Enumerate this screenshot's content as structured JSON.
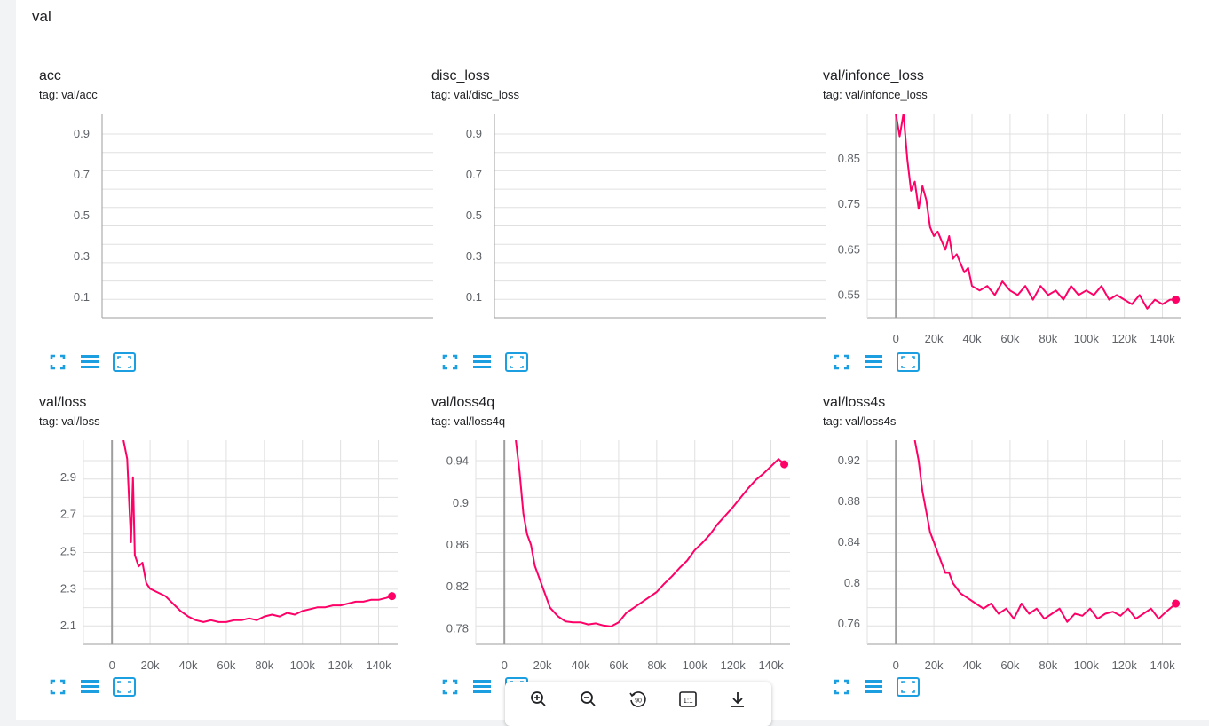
{
  "group": {
    "title": "val"
  },
  "colors": {
    "series": "#ff0066",
    "tool": "#1b9fe0",
    "axis": "#9e9e9e",
    "grid": "#e0e0e0"
  },
  "cards": [
    {
      "title": "acc",
      "tag": "tag: val/acc"
    },
    {
      "title": "disc_loss",
      "tag": "tag: val/disc_loss"
    },
    {
      "title": "val/infonce_loss",
      "tag": "tag: val/infonce_loss"
    },
    {
      "title": "val/loss",
      "tag": "tag: val/loss"
    },
    {
      "title": "val/loss4q",
      "tag": "tag: val/loss4q"
    },
    {
      "title": "val/loss4s",
      "tag": "tag: val/loss4s"
    }
  ],
  "toolbar_icons": [
    "fullscreen-icon",
    "data-table-icon",
    "fit-domain-icon"
  ],
  "zoombar_icons": [
    "zoom-in-icon",
    "zoom-out-icon",
    "rotate-icon",
    "actual-size-icon",
    "download-icon"
  ],
  "chart_data": [
    {
      "type": "line",
      "title": "acc",
      "y_ticks": [
        "0.9",
        "0.7",
        "0.5",
        "0.3",
        "0.1"
      ],
      "x_ticks": [],
      "ylim": [
        0.0,
        1.0
      ],
      "series": []
    },
    {
      "type": "line",
      "title": "disc_loss",
      "y_ticks": [
        "0.9",
        "0.7",
        "0.5",
        "0.3",
        "0.1"
      ],
      "x_ticks": [],
      "ylim": [
        0.0,
        1.0
      ],
      "series": []
    },
    {
      "type": "line",
      "title": "val/infonce_loss",
      "y_ticks": [
        "0.85",
        "0.75",
        "0.65",
        "0.55"
      ],
      "x_ticks": [
        "0",
        "20k",
        "40k",
        "60k",
        "80k",
        "100k",
        "120k",
        "140k"
      ],
      "xlim": [
        -15000,
        150000
      ],
      "ylim": [
        0.5,
        0.95
      ],
      "series": [
        {
          "x": [
            0,
            2000,
            4000,
            6000,
            8000,
            10000,
            12000,
            14000,
            16000,
            18000,
            20000,
            22000,
            24000,
            26000,
            28000,
            30000,
            32000,
            34000,
            36000,
            38000,
            40000,
            44000,
            48000,
            52000,
            56000,
            60000,
            64000,
            68000,
            72000,
            76000,
            80000,
            84000,
            88000,
            92000,
            96000,
            100000,
            104000,
            108000,
            112000,
            116000,
            120000,
            124000,
            128000,
            132000,
            136000,
            140000,
            144000,
            147000
          ],
          "y": [
            0.95,
            0.9,
            0.95,
            0.85,
            0.78,
            0.8,
            0.74,
            0.79,
            0.76,
            0.7,
            0.68,
            0.69,
            0.67,
            0.65,
            0.68,
            0.63,
            0.64,
            0.62,
            0.6,
            0.61,
            0.57,
            0.56,
            0.57,
            0.55,
            0.58,
            0.56,
            0.55,
            0.57,
            0.54,
            0.57,
            0.55,
            0.56,
            0.54,
            0.57,
            0.55,
            0.56,
            0.55,
            0.57,
            0.54,
            0.55,
            0.54,
            0.53,
            0.55,
            0.52,
            0.54,
            0.53,
            0.54,
            0.54
          ]
        }
      ]
    },
    {
      "type": "line",
      "title": "val/loss",
      "y_ticks": [
        "2.9",
        "2.7",
        "2.5",
        "2.3",
        "2.1"
      ],
      "x_ticks": [
        "0",
        "20k",
        "40k",
        "60k",
        "80k",
        "100k",
        "120k",
        "140k"
      ],
      "xlim": [
        -15000,
        150000
      ],
      "ylim": [
        2.0,
        3.1
      ],
      "series": [
        {
          "x": [
            6000,
            8000,
            10000,
            11000,
            12000,
            14000,
            16000,
            18000,
            20000,
            24000,
            28000,
            32000,
            36000,
            40000,
            44000,
            48000,
            52000,
            56000,
            60000,
            64000,
            68000,
            72000,
            76000,
            80000,
            84000,
            88000,
            92000,
            96000,
            100000,
            104000,
            108000,
            112000,
            116000,
            120000,
            124000,
            128000,
            132000,
            136000,
            140000,
            144000,
            147000
          ],
          "y": [
            3.1,
            3.0,
            2.55,
            2.9,
            2.48,
            2.42,
            2.44,
            2.33,
            2.3,
            2.28,
            2.26,
            2.22,
            2.18,
            2.15,
            2.13,
            2.12,
            2.13,
            2.12,
            2.12,
            2.13,
            2.13,
            2.14,
            2.13,
            2.15,
            2.16,
            2.15,
            2.17,
            2.16,
            2.18,
            2.19,
            2.2,
            2.2,
            2.21,
            2.21,
            2.22,
            2.23,
            2.23,
            2.24,
            2.24,
            2.25,
            2.26
          ]
        }
      ]
    },
    {
      "type": "line",
      "title": "val/loss4q",
      "y_ticks": [
        "0.94",
        "0.9",
        "0.86",
        "0.82",
        "0.78"
      ],
      "x_ticks": [
        "0",
        "20k",
        "40k",
        "60k",
        "80k",
        "100k",
        "120k",
        "140k"
      ],
      "xlim": [
        -15000,
        150000
      ],
      "ylim": [
        0.765,
        0.96
      ],
      "series": [
        {
          "x": [
            6000,
            8000,
            10000,
            12000,
            14000,
            16000,
            18000,
            20000,
            24000,
            28000,
            32000,
            36000,
            40000,
            44000,
            48000,
            52000,
            56000,
            60000,
            64000,
            68000,
            72000,
            76000,
            80000,
            84000,
            88000,
            92000,
            96000,
            100000,
            104000,
            108000,
            112000,
            116000,
            120000,
            124000,
            128000,
            132000,
            136000,
            140000,
            144000,
            147000
          ],
          "y": [
            0.96,
            0.93,
            0.89,
            0.87,
            0.86,
            0.84,
            0.83,
            0.82,
            0.8,
            0.792,
            0.787,
            0.786,
            0.786,
            0.784,
            0.785,
            0.783,
            0.782,
            0.786,
            0.795,
            0.8,
            0.805,
            0.81,
            0.815,
            0.823,
            0.83,
            0.838,
            0.845,
            0.855,
            0.862,
            0.87,
            0.88,
            0.888,
            0.896,
            0.905,
            0.914,
            0.922,
            0.928,
            0.935,
            0.942,
            0.937
          ]
        }
      ]
    },
    {
      "type": "line",
      "title": "val/loss4s",
      "y_ticks": [
        "0.92",
        "0.88",
        "0.84",
        "0.8",
        "0.76"
      ],
      "x_ticks": [
        "0",
        "20k",
        "40k",
        "60k",
        "80k",
        "100k",
        "120k",
        "140k"
      ],
      "xlim": [
        -15000,
        150000
      ],
      "ylim": [
        0.74,
        0.94
      ],
      "series": [
        {
          "x": [
            10000,
            12000,
            14000,
            16000,
            18000,
            20000,
            22000,
            24000,
            26000,
            28000,
            30000,
            34000,
            38000,
            42000,
            46000,
            50000,
            54000,
            58000,
            62000,
            66000,
            70000,
            74000,
            78000,
            82000,
            86000,
            90000,
            94000,
            98000,
            102000,
            106000,
            110000,
            114000,
            118000,
            122000,
            126000,
            130000,
            134000,
            138000,
            142000,
            147000
          ],
          "y": [
            0.94,
            0.92,
            0.89,
            0.87,
            0.85,
            0.84,
            0.83,
            0.82,
            0.81,
            0.81,
            0.8,
            0.79,
            0.785,
            0.78,
            0.775,
            0.78,
            0.77,
            0.775,
            0.765,
            0.78,
            0.77,
            0.775,
            0.765,
            0.77,
            0.775,
            0.762,
            0.77,
            0.768,
            0.775,
            0.765,
            0.77,
            0.772,
            0.768,
            0.775,
            0.765,
            0.77,
            0.775,
            0.765,
            0.772,
            0.78
          ]
        }
      ]
    }
  ]
}
